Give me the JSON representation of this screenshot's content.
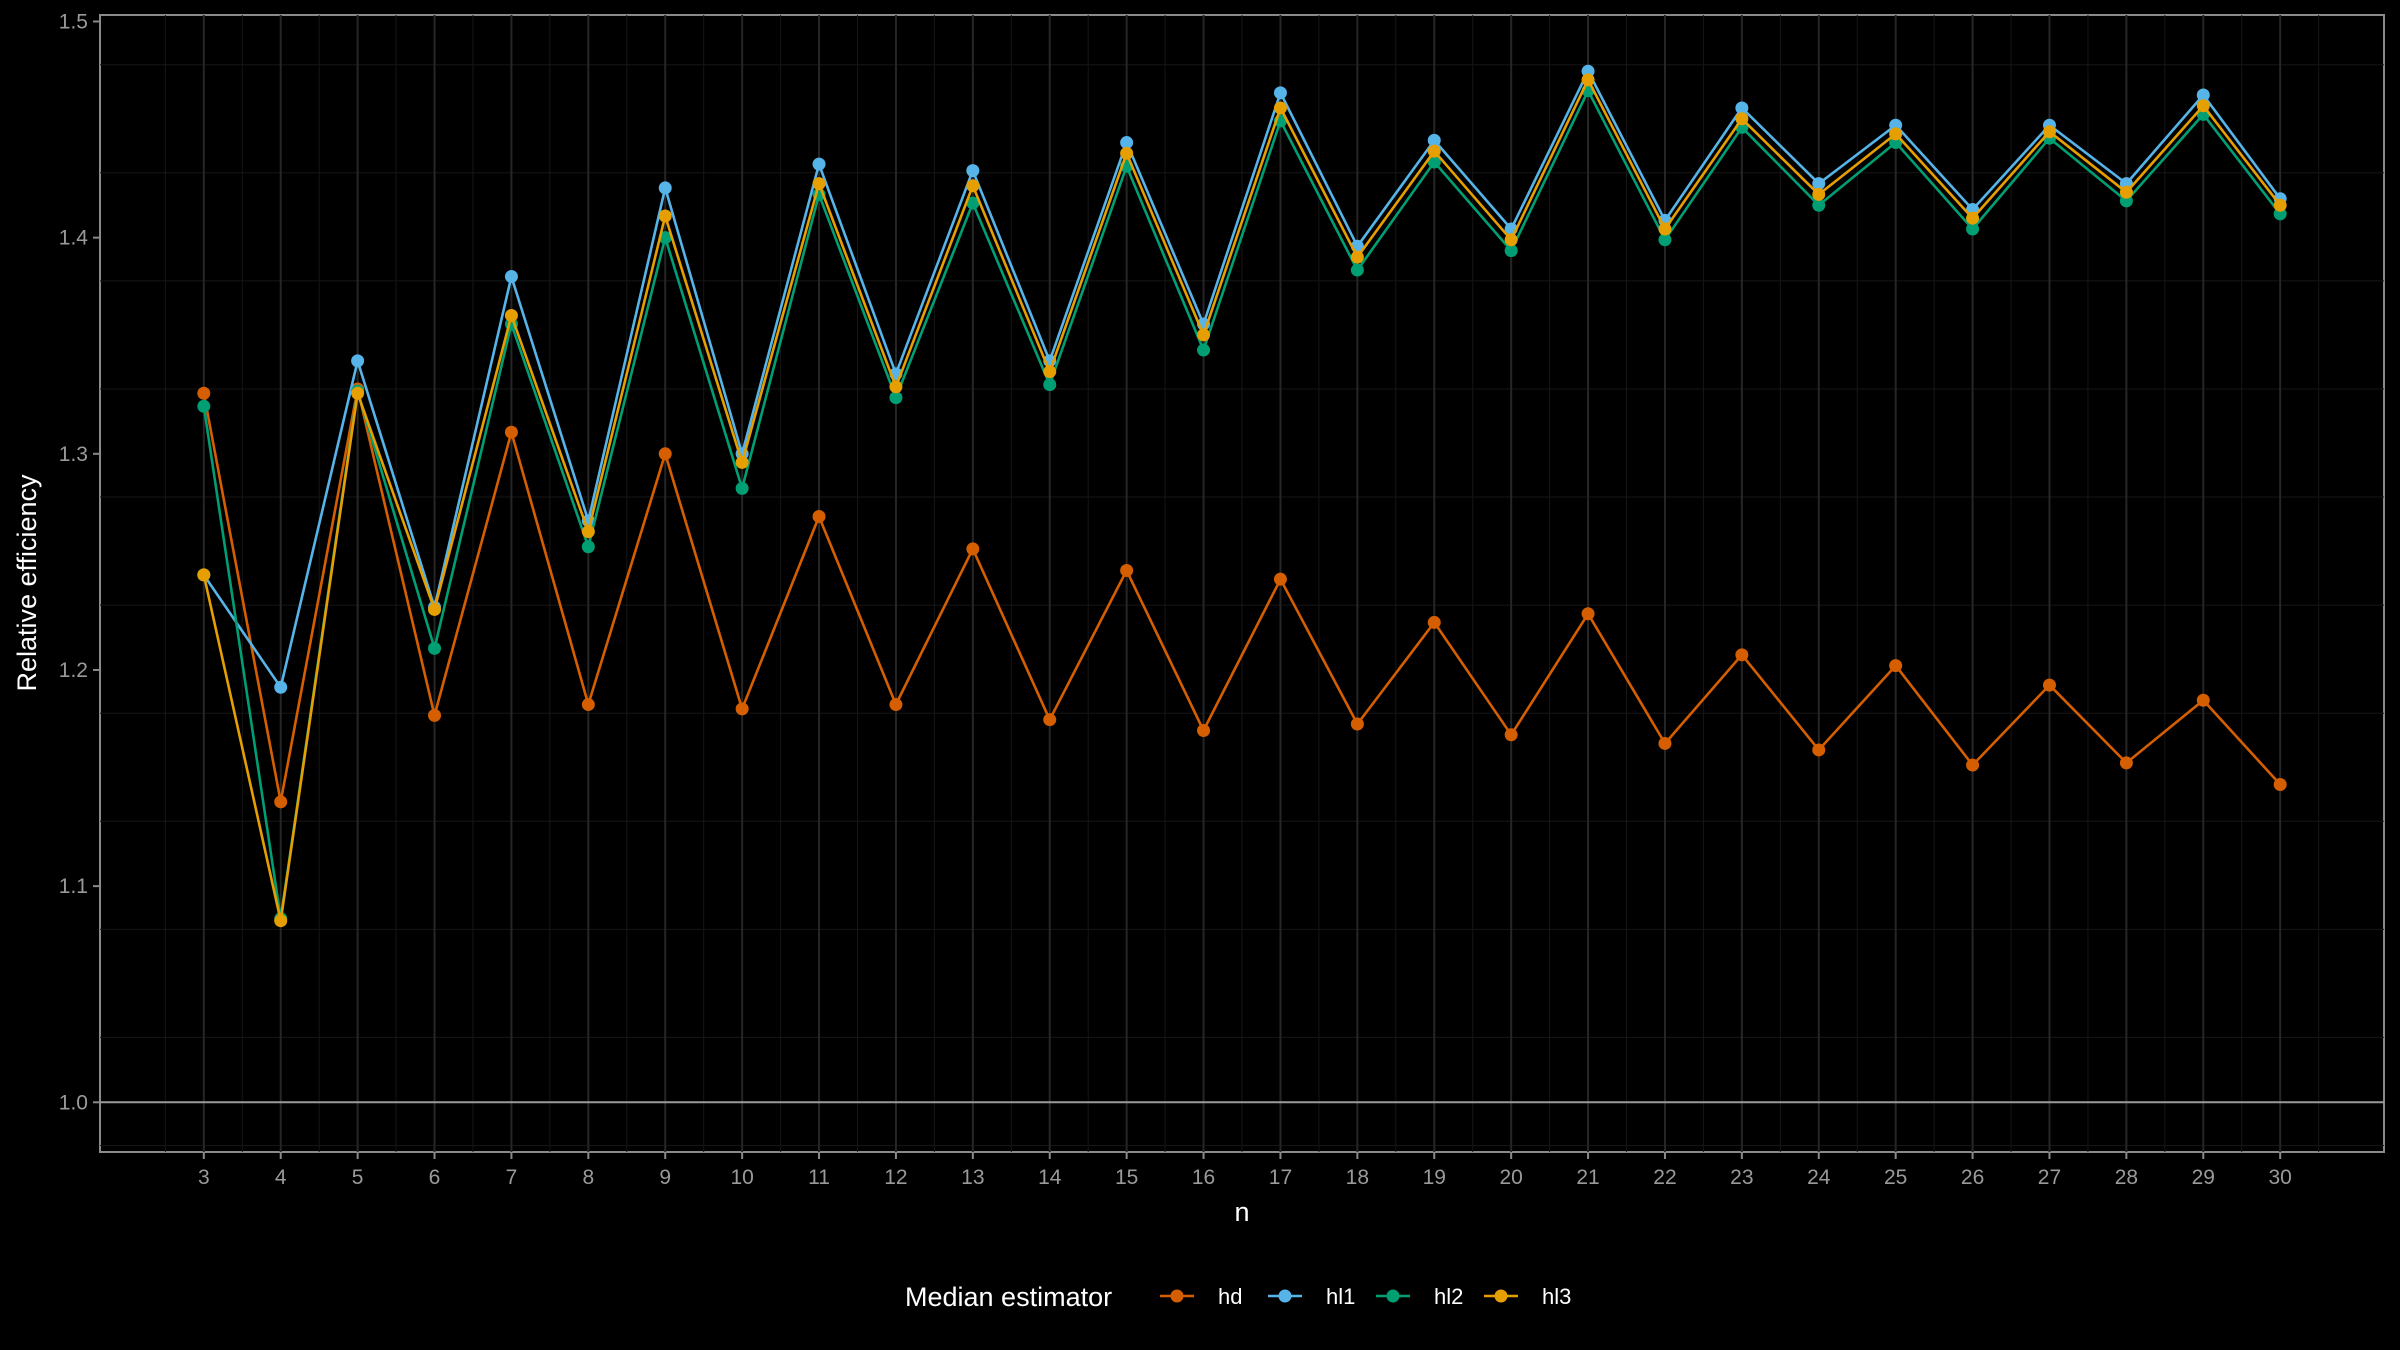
{
  "chart_data": {
    "type": "line",
    "xlabel": "n",
    "ylabel": "Relative efficiency",
    "x": [
      3,
      4,
      5,
      6,
      7,
      8,
      9,
      10,
      11,
      12,
      13,
      14,
      15,
      16,
      17,
      18,
      19,
      20,
      21,
      22,
      23,
      24,
      25,
      26,
      27,
      28,
      29,
      30
    ],
    "xlim": [
      1.65,
      31.35
    ],
    "ylim": [
      0.977,
      1.503
    ],
    "y_ticks": [
      1.0,
      1.1,
      1.2,
      1.3,
      1.4,
      1.5
    ],
    "y_tick_labels": [
      "1.0",
      "1.1",
      "1.2",
      "1.3",
      "1.4",
      "1.5"
    ],
    "reference_line": 1.0,
    "grid": true,
    "legend": {
      "title": "Median estimator",
      "position": "bottom"
    },
    "series": [
      {
        "name": "hd",
        "color": "#D55E00",
        "values": [
          1.328,
          1.139,
          1.33,
          1.179,
          1.31,
          1.184,
          1.3,
          1.182,
          1.271,
          1.184,
          1.256,
          1.177,
          1.246,
          1.172,
          1.242,
          1.175,
          1.222,
          1.17,
          1.226,
          1.166,
          1.207,
          1.163,
          1.202,
          1.156,
          1.193,
          1.157,
          1.186,
          1.147
        ]
      },
      {
        "name": "hl1",
        "color": "#56B4E9",
        "values": [
          1.244,
          1.192,
          1.343,
          1.229,
          1.382,
          1.269,
          1.423,
          1.3,
          1.434,
          1.337,
          1.431,
          1.343,
          1.444,
          1.36,
          1.467,
          1.396,
          1.445,
          1.404,
          1.477,
          1.408,
          1.46,
          1.425,
          1.452,
          1.413,
          1.452,
          1.425,
          1.466,
          1.418
        ]
      },
      {
        "name": "hl2",
        "color": "#009E73",
        "values": [
          1.322,
          1.085,
          1.329,
          1.21,
          1.36,
          1.257,
          1.4,
          1.284,
          1.42,
          1.326,
          1.416,
          1.332,
          1.433,
          1.348,
          1.454,
          1.385,
          1.435,
          1.394,
          1.468,
          1.399,
          1.451,
          1.415,
          1.444,
          1.404,
          1.446,
          1.417,
          1.457,
          1.411
        ]
      },
      {
        "name": "hl3",
        "color": "#E69F00",
        "values": [
          1.244,
          1.084,
          1.328,
          1.228,
          1.364,
          1.264,
          1.41,
          1.296,
          1.425,
          1.331,
          1.424,
          1.338,
          1.439,
          1.355,
          1.46,
          1.391,
          1.44,
          1.399,
          1.473,
          1.404,
          1.455,
          1.42,
          1.448,
          1.409,
          1.449,
          1.421,
          1.461,
          1.415
        ]
      }
    ]
  }
}
